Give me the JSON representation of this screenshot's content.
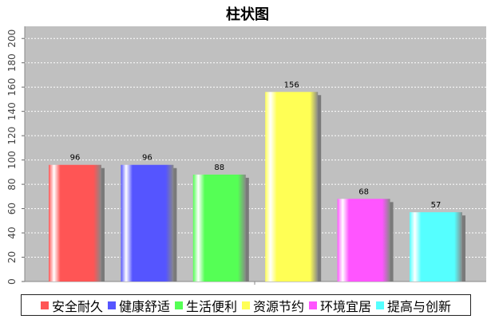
{
  "chart_data": {
    "type": "bar",
    "title": "柱状图",
    "xlabel": "",
    "ylabel": "",
    "ylim": [
      0,
      210
    ],
    "yticks": [
      0,
      20,
      40,
      60,
      80,
      100,
      120,
      140,
      160,
      180,
      200
    ],
    "grid": true,
    "legend_position": "bottom",
    "background_color": "#c0c0c0",
    "categories": [
      "安全耐久",
      "健康舒适",
      "生活便利",
      "资源节约",
      "环境宜居",
      "提高与创新"
    ],
    "values": [
      96,
      96,
      88,
      156,
      68,
      57
    ],
    "colors": [
      "#ff5555",
      "#5555ff",
      "#55ff55",
      "#ffff55",
      "#ff55ff",
      "#55ffff"
    ]
  }
}
